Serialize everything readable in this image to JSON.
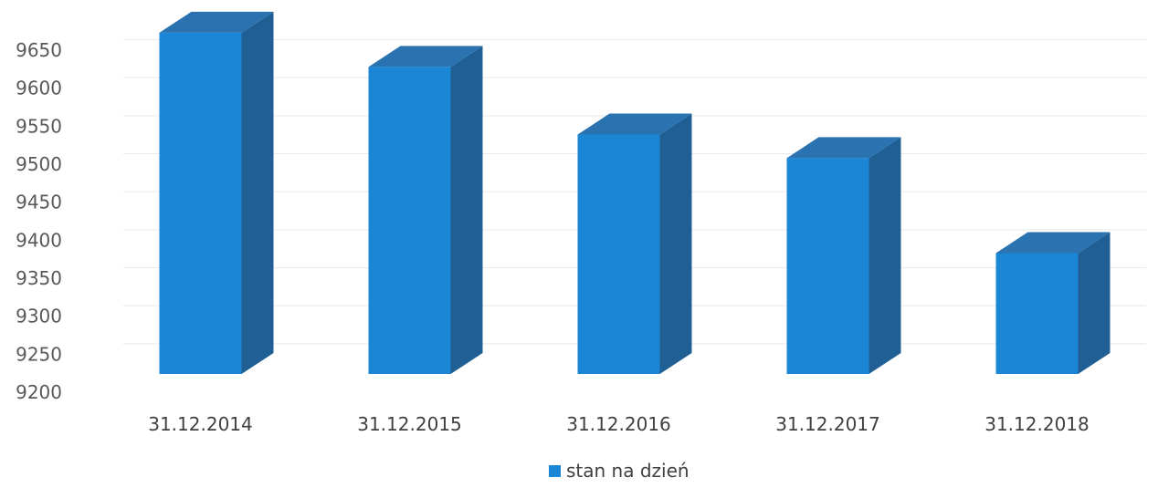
{
  "chart_data": {
    "type": "bar",
    "categories": [
      "31.12.2014",
      "31.12.2015",
      "31.12.2016",
      "31.12.2017",
      "31.12.2018"
    ],
    "series": [
      {
        "name": "stan na dzień",
        "values": [
          9673,
          9628,
          9539,
          9508,
          9383
        ]
      }
    ],
    "ylim": [
      9200,
      9650
    ],
    "yticks": [
      9200,
      9250,
      9300,
      9350,
      9400,
      9450,
      9500,
      9550,
      9600,
      9650
    ],
    "grid": true,
    "legend": "bottom-center",
    "colors": {
      "bar_front": "#1b86d6",
      "bar_top": "#2a73b0",
      "bar_side": "#1f5f94",
      "legend_marker": "#1b86d6"
    }
  }
}
